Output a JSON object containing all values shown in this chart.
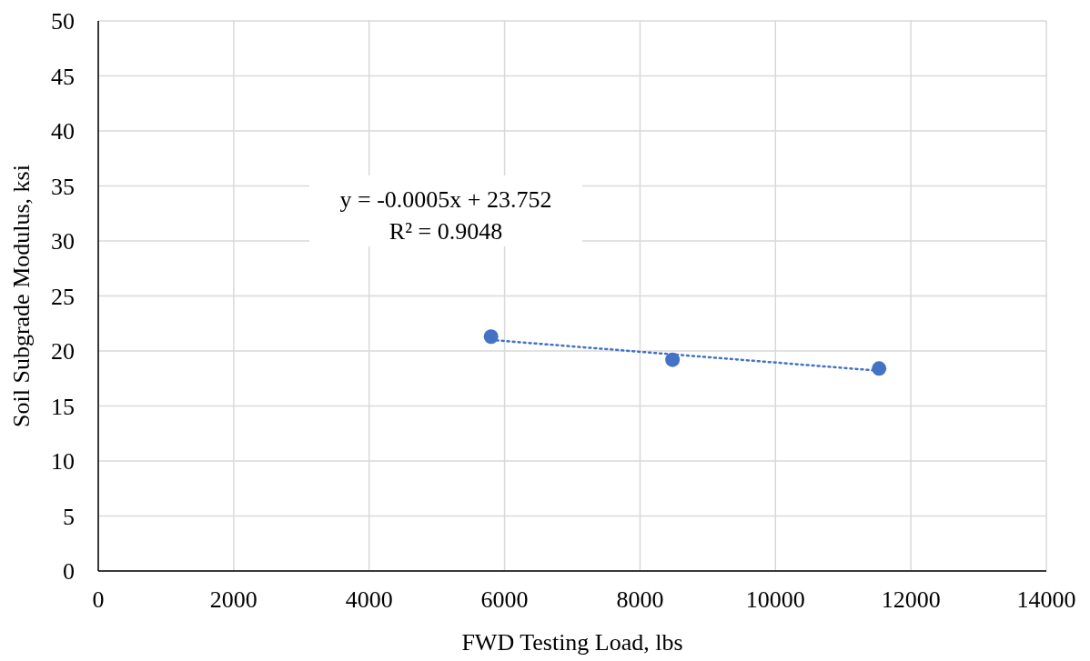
{
  "chart_data": {
    "type": "scatter",
    "xlabel": "FWD Testing Load, lbs",
    "ylabel": "Soil Subgrade Modulus, ksi",
    "annotations": [
      "y = -0.0005x + 23.752",
      "R² = 0.9048"
    ],
    "series": [
      {
        "color": "#4472c4",
        "marker": "circle",
        "x": [
          5800,
          8480,
          11530
        ],
        "values": [
          21.3,
          19.2,
          18.4
        ]
      },
      {
        "type": "line",
        "color": "#4472c4",
        "line_style": "dotted",
        "x": [
          5800,
          11530
        ],
        "values": [
          21.0,
          18.2
        ]
      }
    ],
    "xlim": [
      0,
      14000
    ],
    "xticks": [
      0,
      2000,
      4000,
      6000,
      8000,
      10000,
      12000,
      14000
    ],
    "ylim": [
      0,
      50
    ],
    "yticks": [
      0,
      5,
      10,
      15,
      20,
      25,
      30,
      35,
      40,
      45,
      50
    ],
    "grid": true
  }
}
